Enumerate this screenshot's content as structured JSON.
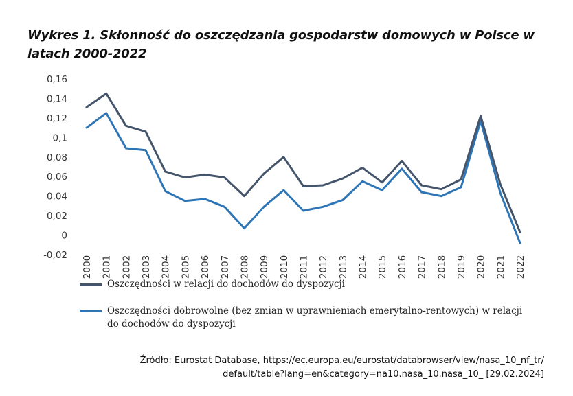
{
  "title": "Wykres 1. Skłonność do oszczędzania gospodarstw domowych w Polsce w latach 2000-2022",
  "source": {
    "line1": "Źródło: Eurostat Database, https://ec.europa.eu/eurostat/databrowser/view/nasa_10_nf_tr/",
    "line2": "default/table?lang=en&category=na10.nasa_10.nasa_10_ [29.02.2024]"
  },
  "chart_data": {
    "type": "line",
    "x": [
      "2000",
      "2001",
      "2002",
      "2003",
      "2004",
      "2005",
      "2006",
      "2007",
      "2008",
      "2009",
      "2010",
      "2011",
      "2012",
      "2013",
      "2014",
      "2015",
      "2016",
      "2017",
      "2018",
      "2019",
      "2020",
      "2021",
      "2022"
    ],
    "yticks": [
      "0,16",
      "0,14",
      "0,12",
      "0,1",
      "0,08",
      "0,06",
      "0,04",
      "0,02",
      "0",
      "-0,02"
    ],
    "ylim": [
      -0.02,
      0.16
    ],
    "grid": false,
    "legend": "bottom",
    "series": [
      {
        "name": "Oszczędności w relacji do dochodów do dyspozycji",
        "color": "#44546a",
        "values": [
          0.131,
          0.145,
          0.112,
          0.106,
          0.065,
          0.059,
          0.062,
          0.059,
          0.04,
          0.063,
          0.08,
          0.05,
          0.051,
          0.058,
          0.069,
          0.054,
          0.076,
          0.051,
          0.047,
          0.057,
          0.122,
          0.052,
          0.003
        ]
      },
      {
        "name": "Oszczędności dobrowolne (bez zmian w uprawnieniach emerytalno-rentowych) w relacji do dochodów do dyspozycji",
        "color": "#2e75b6",
        "values": [
          0.11,
          0.125,
          0.089,
          0.087,
          0.045,
          0.035,
          0.037,
          0.029,
          0.007,
          0.029,
          0.046,
          0.025,
          0.029,
          0.036,
          0.055,
          0.046,
          0.068,
          0.044,
          0.04,
          0.049,
          0.117,
          0.043,
          -0.008
        ]
      }
    ]
  }
}
